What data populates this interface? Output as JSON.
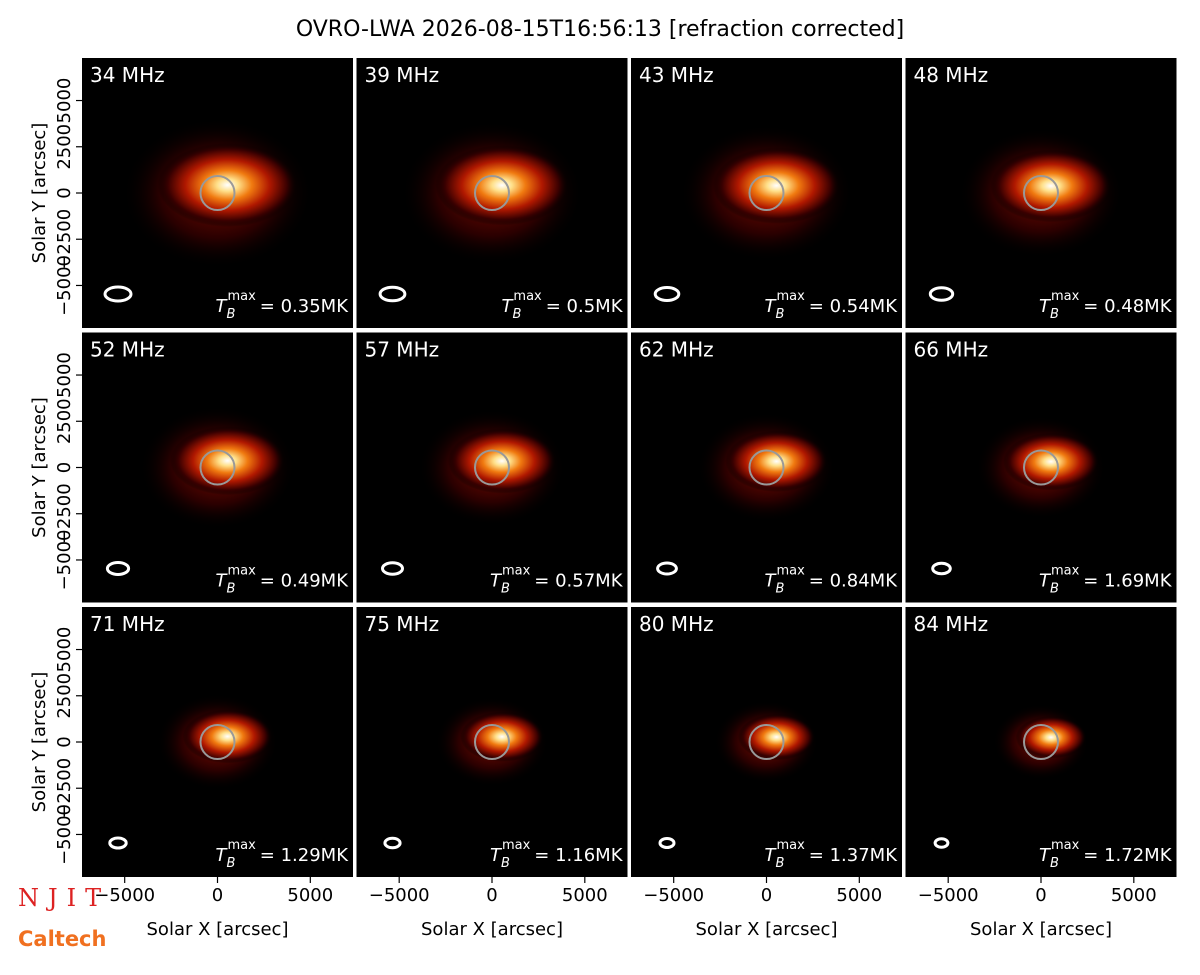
{
  "chart_data": {
    "type": "image-grid",
    "title": "OVRO-LWA 2026-08-15T16:56:13 [refraction corrected]",
    "x_label": "Solar X [arcsec]",
    "y_label": "Solar Y [arcsec]",
    "xlim": [
      -7300,
      7300
    ],
    "ylim": [
      -7300,
      7300
    ],
    "xticks": [
      {
        "value": -5000,
        "label": "−5000"
      },
      0,
      5000
    ],
    "yticks": [
      {
        "value": -5000,
        "label": "−5000"
      },
      {
        "value": -2500,
        "label": "−2500"
      },
      0,
      2500,
      5000
    ],
    "tb_symbol": {
      "base": "T",
      "sub": "B",
      "sup": "max"
    },
    "panels": [
      {
        "label": "34 MHz",
        "tb": "= 0.35MK"
      },
      {
        "label": "39 MHz",
        "tb": "= 0.5MK"
      },
      {
        "label": "43 MHz",
        "tb": "= 0.54MK"
      },
      {
        "label": "48 MHz",
        "tb": "= 0.48MK"
      },
      {
        "label": "52 MHz",
        "tb": "= 0.49MK"
      },
      {
        "label": "57 MHz",
        "tb": "= 0.57MK"
      },
      {
        "label": "62 MHz",
        "tb": "= 0.84MK"
      },
      {
        "label": "66 MHz",
        "tb": "= 1.69MK"
      },
      {
        "label": "71 MHz",
        "tb": "= 1.29MK"
      },
      {
        "label": "75 MHz",
        "tb": "= 1.16MK"
      },
      {
        "label": "80 MHz",
        "tb": "= 1.37MK"
      },
      {
        "label": "84 MHz",
        "tb": "= 1.72MK"
      }
    ],
    "logos": [
      "NJIT",
      "Caltech"
    ]
  }
}
